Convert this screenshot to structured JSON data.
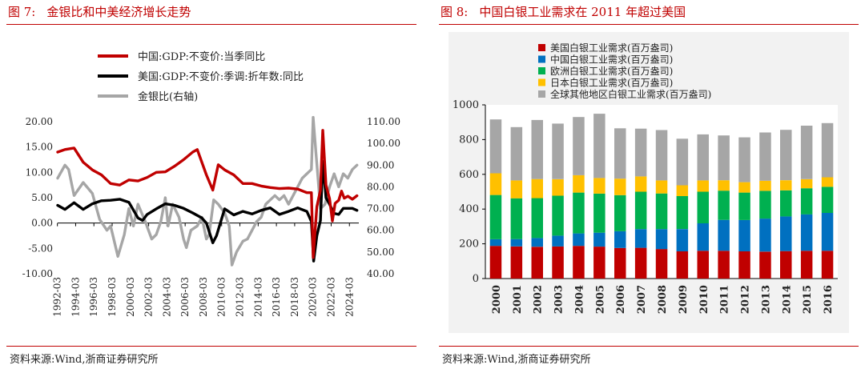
{
  "left_figure": {
    "title_num": "图 7:",
    "title": "金银比和中美经济增长走势",
    "source": "资料来源:Wind,浙商证券研究所"
  },
  "right_figure": {
    "title_num": "图 8:",
    "title": "中国白银工业需求在 2011 年超过美国",
    "source": "资料来源:Wind,浙商证券研究所"
  },
  "chart_data": [
    {
      "type": "line",
      "legend_position": "top",
      "x_ticks": [
        "1992-03",
        "1994-03",
        "1996-03",
        "1998-03",
        "2000-03",
        "2002-03",
        "2004-03",
        "2006-03",
        "2008-03",
        "2010-03",
        "2012-03",
        "2014-03",
        "2016-03",
        "2018-03",
        "2020-03",
        "2022-03",
        "2024-03"
      ],
      "ylim_left": [
        -10,
        20
      ],
      "yticks_left": [
        "20.00",
        "15.00",
        "10.00",
        "5.00",
        "0.00",
        "-5.00",
        "-10.00"
      ],
      "ylim_right": [
        40,
        110
      ],
      "yticks_right": [
        "110.00",
        "100.00",
        "90.00",
        "80.00",
        "70.00",
        "60.00",
        "50.00",
        "40.00"
      ],
      "series": [
        {
          "name": "中国:GDP:不变价:当季同比",
          "color": "#c00000",
          "axis": "left",
          "x": [
            1992.2,
            1993.0,
            1994.0,
            1995.0,
            1996.0,
            1997.0,
            1998.0,
            1999.0,
            2000.0,
            2001.0,
            2002.0,
            2003.0,
            2004.0,
            2005.0,
            2006.0,
            2007.0,
            2007.5,
            2008.5,
            2009.2,
            2009.8,
            2010.5,
            2011.5,
            2012.5,
            2013.5,
            2014.5,
            2015.5,
            2016.5,
            2017.5,
            2018.5,
            2019.5,
            2020.0,
            2020.2,
            2020.6,
            2021.0,
            2021.25,
            2021.6,
            2022.0,
            2022.3,
            2022.6,
            2023.0,
            2023.3,
            2023.6,
            2024.0,
            2024.5,
            2025.0
          ],
          "y": [
            14.0,
            14.5,
            14.8,
            12.0,
            10.5,
            9.5,
            7.8,
            7.5,
            8.5,
            8.3,
            9.0,
            10.0,
            10.1,
            11.2,
            12.5,
            14.0,
            14.5,
            9.5,
            6.5,
            11.5,
            10.5,
            9.5,
            7.8,
            7.8,
            7.3,
            7.0,
            6.8,
            6.9,
            6.7,
            6.0,
            6.0,
            -6.8,
            3.2,
            6.5,
            18.3,
            7.5,
            4.8,
            0.4,
            3.9,
            4.5,
            6.3,
            4.9,
            5.3,
            4.7,
            5.4
          ]
        },
        {
          "name": "美国:GDP:不变价:季调:折年数:同比",
          "color": "#000000",
          "axis": "left",
          "x": [
            1992.2,
            1993.0,
            1994.0,
            1995.0,
            1996.0,
            1997.0,
            1998.0,
            1999.0,
            2000.0,
            2001.0,
            2001.5,
            2002.0,
            2003.0,
            2004.0,
            2005.0,
            2006.0,
            2007.0,
            2008.0,
            2008.5,
            2009.2,
            2009.6,
            2010.5,
            2011.5,
            2012.5,
            2013.5,
            2014.5,
            2015.5,
            2016.5,
            2017.5,
            2018.5,
            2019.5,
            2020.0,
            2020.25,
            2020.6,
            2021.0,
            2021.25,
            2021.6,
            2022.0,
            2022.5,
            2023.0,
            2023.5,
            2024.0,
            2024.5,
            2025.0
          ],
          "y": [
            3.5,
            2.7,
            4.0,
            2.7,
            3.8,
            4.4,
            4.5,
            4.7,
            4.1,
            1.0,
            0.5,
            1.7,
            2.8,
            3.8,
            3.5,
            2.9,
            2.0,
            1.0,
            0.0,
            -3.9,
            -2.5,
            2.8,
            1.6,
            2.3,
            1.8,
            2.5,
            3.0,
            1.7,
            2.3,
            3.0,
            2.3,
            0.3,
            -7.5,
            -2.5,
            0.5,
            12.2,
            5.0,
            3.7,
            1.9,
            1.7,
            2.9,
            2.9,
            2.9,
            2.5
          ]
        },
        {
          "name": "金银比(右轴)",
          "color": "#a6a6a6",
          "axis": "right",
          "x": [
            1992.2,
            1993.0,
            1993.4,
            1994.0,
            1995.0,
            1996.0,
            1996.8,
            1997.6,
            1998.0,
            1998.8,
            1999.5,
            2000.0,
            2000.5,
            2001.0,
            2001.8,
            2002.5,
            2003.0,
            2003.5,
            2004.0,
            2004.3,
            2004.8,
            2005.5,
            2006.0,
            2006.3,
            2006.8,
            2007.5,
            2008.0,
            2008.5,
            2008.8,
            2009.3,
            2009.8,
            2010.5,
            2011.0,
            2011.3,
            2011.8,
            2012.5,
            2013.0,
            2013.5,
            2014.0,
            2014.5,
            2015.0,
            2015.5,
            2016.0,
            2016.5,
            2017.0,
            2017.5,
            2018.0,
            2018.5,
            2019.0,
            2019.5,
            2020.0,
            2020.2,
            2020.5,
            2021.0,
            2021.5,
            2022.0,
            2022.5,
            2023.0,
            2023.5,
            2024.0,
            2024.5,
            2025.0
          ],
          "y": [
            84,
            90,
            88,
            76,
            82,
            77,
            65,
            60,
            62,
            48,
            58,
            70,
            62,
            72,
            64,
            56,
            58,
            64,
            75,
            62,
            72,
            66,
            56,
            52,
            60,
            62,
            66,
            56,
            58,
            74,
            72,
            68,
            62,
            44,
            50,
            55,
            56,
            60,
            64,
            66,
            72,
            74,
            76,
            74,
            76,
            72,
            76,
            80,
            84,
            86,
            88,
            112,
            96,
            70,
            72,
            80,
            86,
            80,
            86,
            84,
            88,
            90
          ]
        }
      ]
    },
    {
      "type": "bar",
      "stacked": true,
      "legend_position": "top-left",
      "categories": [
        "2000",
        "2001",
        "2002",
        "2003",
        "2004",
        "2005",
        "2006",
        "2007",
        "2008",
        "2009",
        "2010",
        "2011",
        "2012",
        "2013",
        "2014",
        "2015",
        "2016"
      ],
      "ylim": [
        0,
        1000
      ],
      "yticks": [
        "0",
        "200",
        "400",
        "600",
        "800",
        "1000"
      ],
      "series": [
        {
          "name": "美国白银工业需求(百万盎司)",
          "color": "#c00000",
          "values": [
            188,
            185,
            183,
            185,
            188,
            184,
            176,
            177,
            170,
            157,
            160,
            160,
            157,
            155,
            158,
            160,
            160
          ]
        },
        {
          "name": "中国白银工业需求(百万盎司)",
          "color": "#0070c0",
          "values": [
            38,
            42,
            50,
            62,
            72,
            80,
            96,
            108,
            115,
            128,
            158,
            178,
            180,
            190,
            200,
            210,
            218
          ]
        },
        {
          "name": "欧洲白银工业需求(百万盎司)",
          "color": "#00b050",
          "values": [
            255,
            235,
            230,
            230,
            235,
            225,
            208,
            215,
            205,
            190,
            182,
            168,
            158,
            160,
            150,
            150,
            150
          ]
        },
        {
          "name": "日本白银工业需求(百万盎司)",
          "color": "#ffc000",
          "values": [
            125,
            103,
            110,
            95,
            100,
            90,
            95,
            88,
            75,
            62,
            65,
            60,
            60,
            58,
            58,
            52,
            55
          ]
        },
        {
          "name": "全球其他地区白银工业需求(百万盎司)",
          "color": "#a6a6a6",
          "values": [
            310,
            307,
            340,
            320,
            335,
            370,
            290,
            275,
            290,
            268,
            265,
            258,
            258,
            278,
            290,
            308,
            312
          ]
        }
      ]
    }
  ]
}
